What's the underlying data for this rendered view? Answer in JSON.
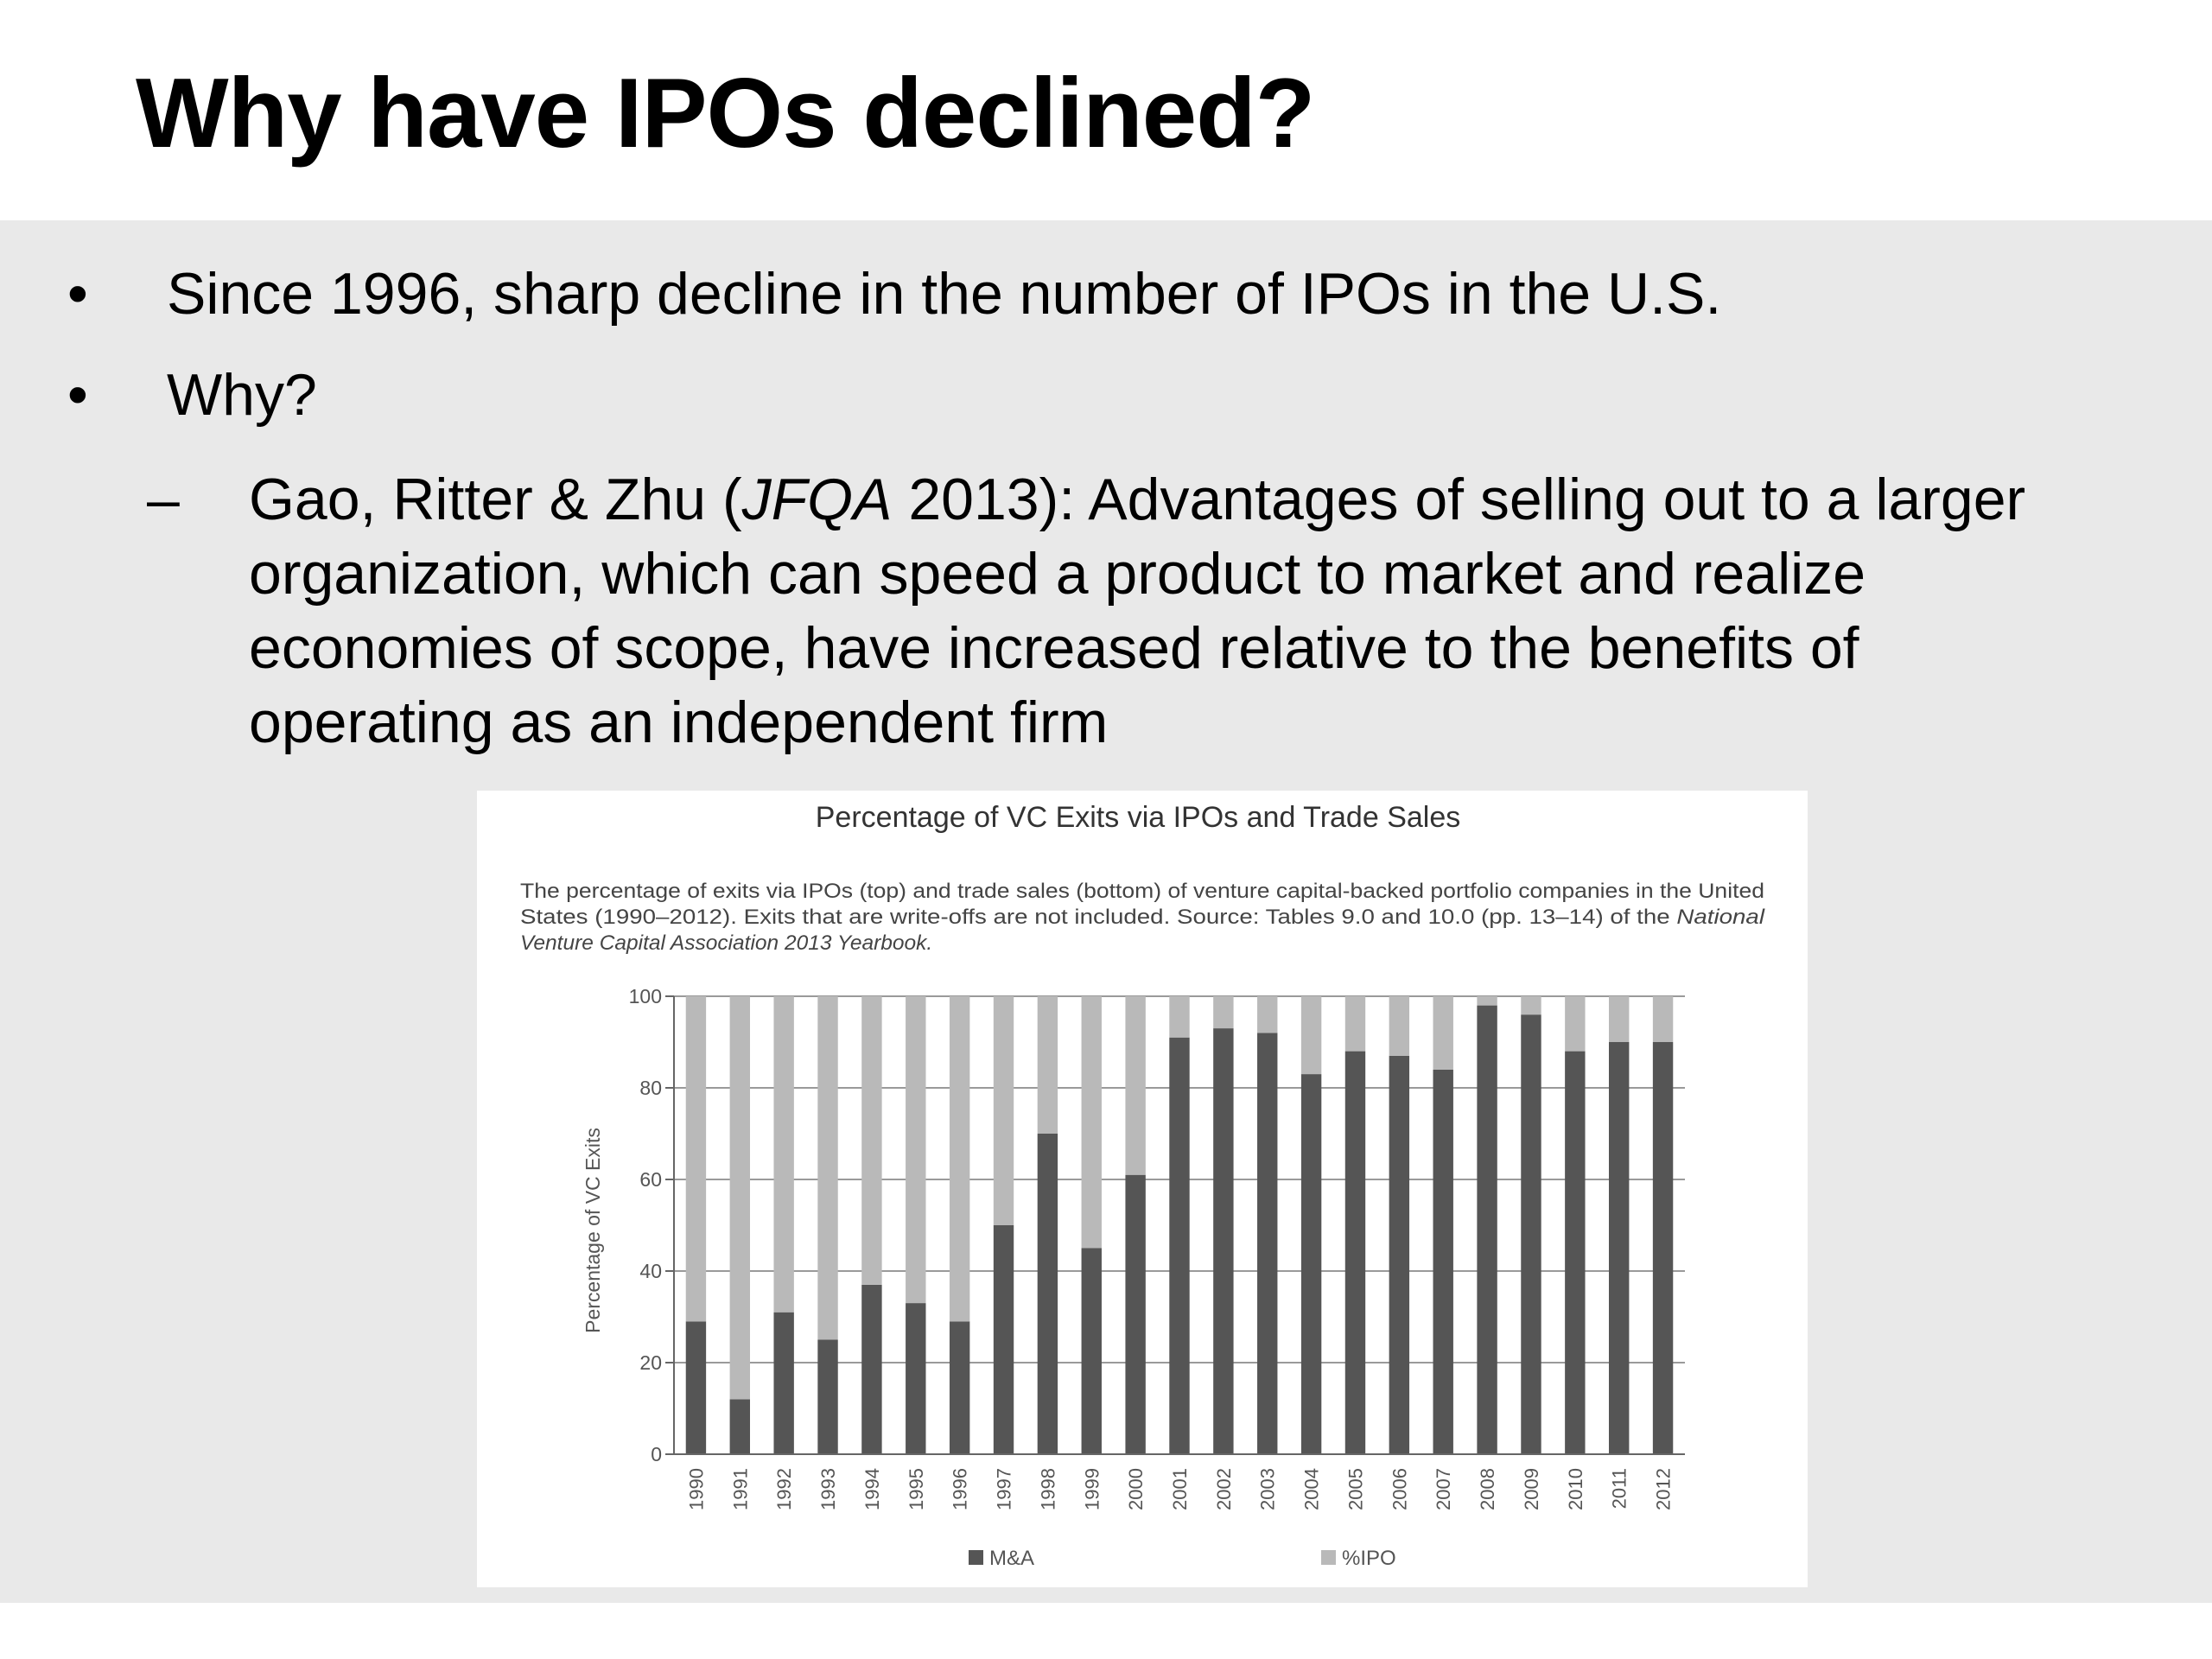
{
  "slide": {
    "title": "Why have IPOs declined?",
    "bullets": [
      {
        "marker": "•",
        "text": "Since 1996, sharp decline in the number of IPOs in the U.S."
      },
      {
        "marker": "•",
        "text": "Why?"
      }
    ],
    "sub_bullet": {
      "marker": "–",
      "pre": "Gao, Ritter & Zhu (",
      "journal": "JFQA",
      "year_text": " 2013): Advantages of selling out to a larger",
      "line2": "organization, which can speed a product to market and realize",
      "line3": "economies of scope, have increased relative to the benefits of",
      "line4": "operating as an independent firm"
    }
  },
  "colors": {
    "band": "#e9e9e9",
    "ma": "#555555",
    "ipo": "#b9b9b9",
    "grid": "#9a9a9a"
  },
  "chart_data": {
    "type": "bar",
    "stacked": true,
    "title": "Percentage of VC Exits via IPOs and Trade Sales",
    "caption_line1": "The percentage of exits via IPOs (top) and trade sales (bottom) of venture capital-backed portfolio companies in the United",
    "caption_line2": "States (1990–2012). Exits that are write-offs are not included. Source: Tables 9.0 and 10.0 (pp. 13–14) of the",
    "caption_line2_italic": " National",
    "caption_line3_italic": "Venture Capital Association 2013 Yearbook.",
    "ylabel": "Percentage of VC Exits",
    "xlabel": "",
    "ylim": [
      0,
      100
    ],
    "yticks": [
      "0",
      "20",
      "40",
      "60",
      "80",
      "100"
    ],
    "grid": true,
    "legend_position": "bottom",
    "categories": [
      "1990",
      "1991",
      "1992",
      "1993",
      "1994",
      "1995",
      "1996",
      "1997",
      "1998",
      "1999",
      "2000",
      "2001",
      "2002",
      "2003",
      "2004",
      "2005",
      "2006",
      "2007",
      "2008",
      "2009",
      "2010",
      "2011",
      "2012"
    ],
    "series": [
      {
        "name": "M&A",
        "values": [
          29,
          12,
          31,
          25,
          37,
          33,
          29,
          50,
          70,
          45,
          61,
          91,
          93,
          92,
          83,
          88,
          87,
          84,
          98,
          96,
          88,
          90,
          90
        ]
      },
      {
        "name": "%IPO",
        "values": [
          71,
          88,
          69,
          75,
          63,
          67,
          71,
          50,
          30,
          55,
          39,
          9,
          7,
          8,
          17,
          12,
          13,
          16,
          2,
          4,
          12,
          10,
          10
        ]
      }
    ]
  }
}
